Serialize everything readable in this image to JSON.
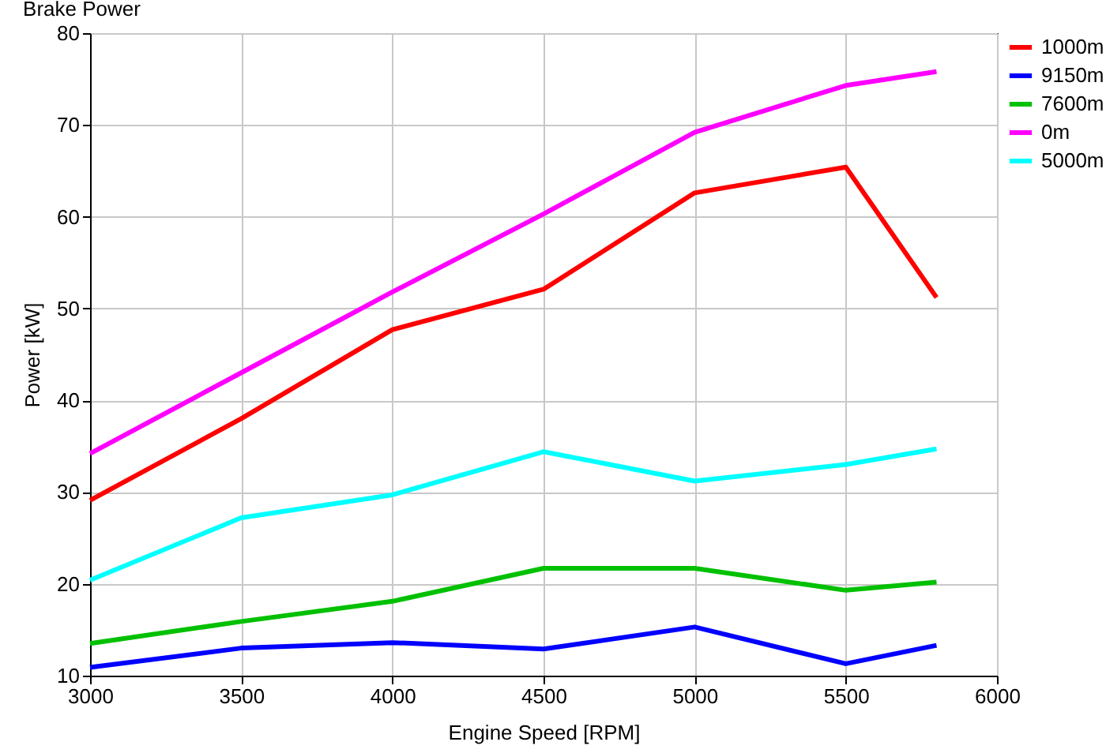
{
  "chart_data": {
    "type": "line",
    "title": "Brake Power",
    "xlabel": "Engine Speed [RPM]",
    "ylabel": "Power [kW]",
    "x": [
      3000,
      3500,
      4000,
      4500,
      5000,
      5500,
      5800
    ],
    "series": [
      {
        "name": "1000m",
        "color": "#ff0000",
        "values": [
          29.1,
          38,
          47.7,
          52.1,
          62.6,
          65.4,
          51.2
        ]
      },
      {
        "name": "9150m",
        "color": "#0000ff",
        "values": [
          10.9,
          13,
          13.6,
          12.9,
          15.3,
          11.3,
          13.3
        ]
      },
      {
        "name": "7600m",
        "color": "#00c000",
        "values": [
          13.5,
          15.9,
          18.1,
          21.7,
          21.7,
          19.3,
          20.2
        ]
      },
      {
        "name": "0m",
        "color": "#ff00ff",
        "values": [
          34.2,
          43,
          51.8,
          60.3,
          69.2,
          74.3,
          75.8
        ]
      },
      {
        "name": "5000m",
        "color": "#00ffff",
        "values": [
          20.4,
          27.2,
          29.7,
          34.4,
          31.2,
          33,
          34.7
        ]
      }
    ],
    "xlim": [
      3000,
      6000
    ],
    "xticks": [
      3000,
      3500,
      4000,
      4500,
      5000,
      5500,
      6000
    ],
    "ylim": [
      10,
      80
    ],
    "yticks": [
      10,
      20,
      30,
      40,
      50,
      60,
      70,
      80
    ],
    "grid": true,
    "legend": "top right",
    "marker": "none",
    "line_style": "solid"
  }
}
